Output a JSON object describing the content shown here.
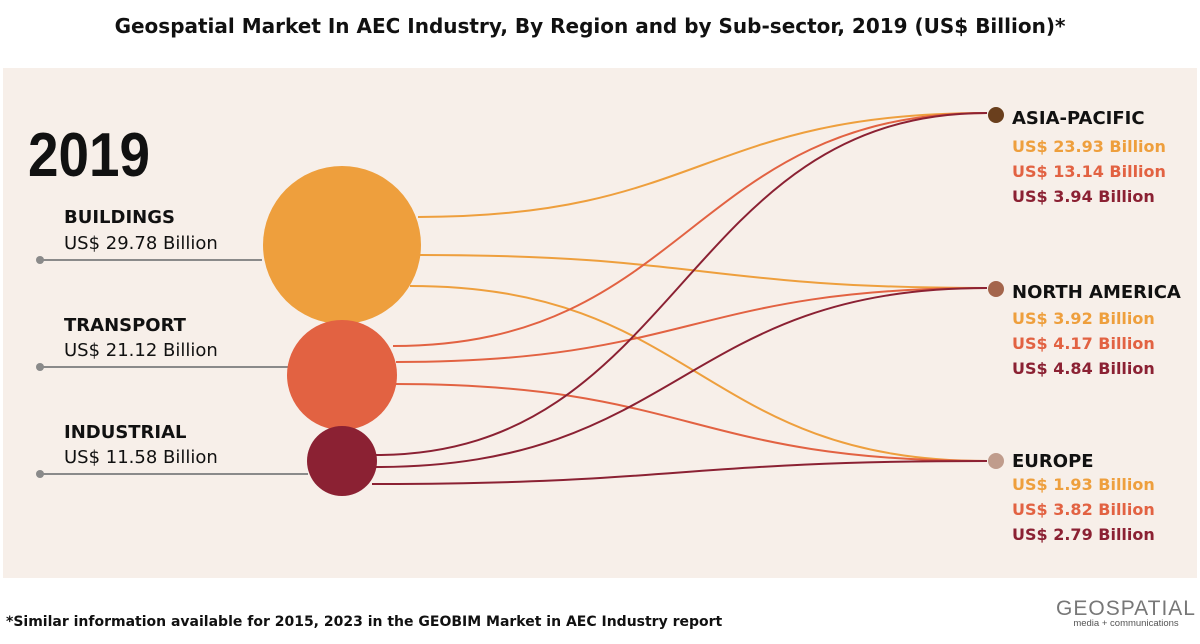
{
  "title": "Geospatial Market In AEC Industry, By Region and by Sub-sector, 2019 (US$ Billion)*",
  "year": "2019",
  "colors": {
    "background": "#f7efe9",
    "buildings": "#ee9f3d",
    "transport": "#e26242",
    "industrial": "#8b2133",
    "asia_pacific": "#6a3f1d",
    "north_america": "#a4654c",
    "europe": "#c09c8c"
  },
  "sectors": [
    {
      "label": "BUILDINGS",
      "value_text": "US$ 29.78 Billion",
      "value": 29.78
    },
    {
      "label": "TRANSPORT",
      "value_text": "US$ 21.12 Billion",
      "value": 21.12
    },
    {
      "label": "INDUSTRIAL",
      "value_text": "US$ 11.58 Billion",
      "value": 11.58
    }
  ],
  "regions": [
    {
      "label": "ASIA-PACIFIC",
      "values_text": [
        "US$ 23.93 Billion",
        "US$ 13.14 Billion",
        "US$ 3.94 Billion"
      ]
    },
    {
      "label": "NORTH AMERICA",
      "values_text": [
        "US$ 3.92 Billion",
        "US$ 4.17 Billion",
        "US$ 4.84 Billion"
      ]
    },
    {
      "label": "EUROPE",
      "values_text": [
        "US$ 1.93 Billion",
        "US$ 3.82 Billion",
        "US$ 2.79 Billion"
      ]
    }
  ],
  "chart_data": {
    "type": "sankey",
    "sources": [
      "BUILDINGS",
      "TRANSPORT",
      "INDUSTRIAL"
    ],
    "targets": [
      "ASIA-PACIFIC",
      "NORTH AMERICA",
      "EUROPE"
    ],
    "flows": [
      {
        "from": "BUILDINGS",
        "to": "ASIA-PACIFIC",
        "value": 23.93
      },
      {
        "from": "BUILDINGS",
        "to": "NORTH AMERICA",
        "value": 3.92
      },
      {
        "from": "BUILDINGS",
        "to": "EUROPE",
        "value": 1.93
      },
      {
        "from": "TRANSPORT",
        "to": "ASIA-PACIFIC",
        "value": 13.14
      },
      {
        "from": "TRANSPORT",
        "to": "NORTH AMERICA",
        "value": 4.17
      },
      {
        "from": "TRANSPORT",
        "to": "EUROPE",
        "value": 3.82
      },
      {
        "from": "INDUSTRIAL",
        "to": "ASIA-PACIFIC",
        "value": 3.94
      },
      {
        "from": "INDUSTRIAL",
        "to": "NORTH AMERICA",
        "value": 4.84
      },
      {
        "from": "INDUSTRIAL",
        "to": "EUROPE",
        "value": 2.79
      }
    ]
  },
  "footnote": "*Similar information available for 2015, 2023 in the GEOBIM Market in AEC Industry report",
  "logo": {
    "main": "GEOSPATIAL",
    "sub": "media + communications"
  }
}
